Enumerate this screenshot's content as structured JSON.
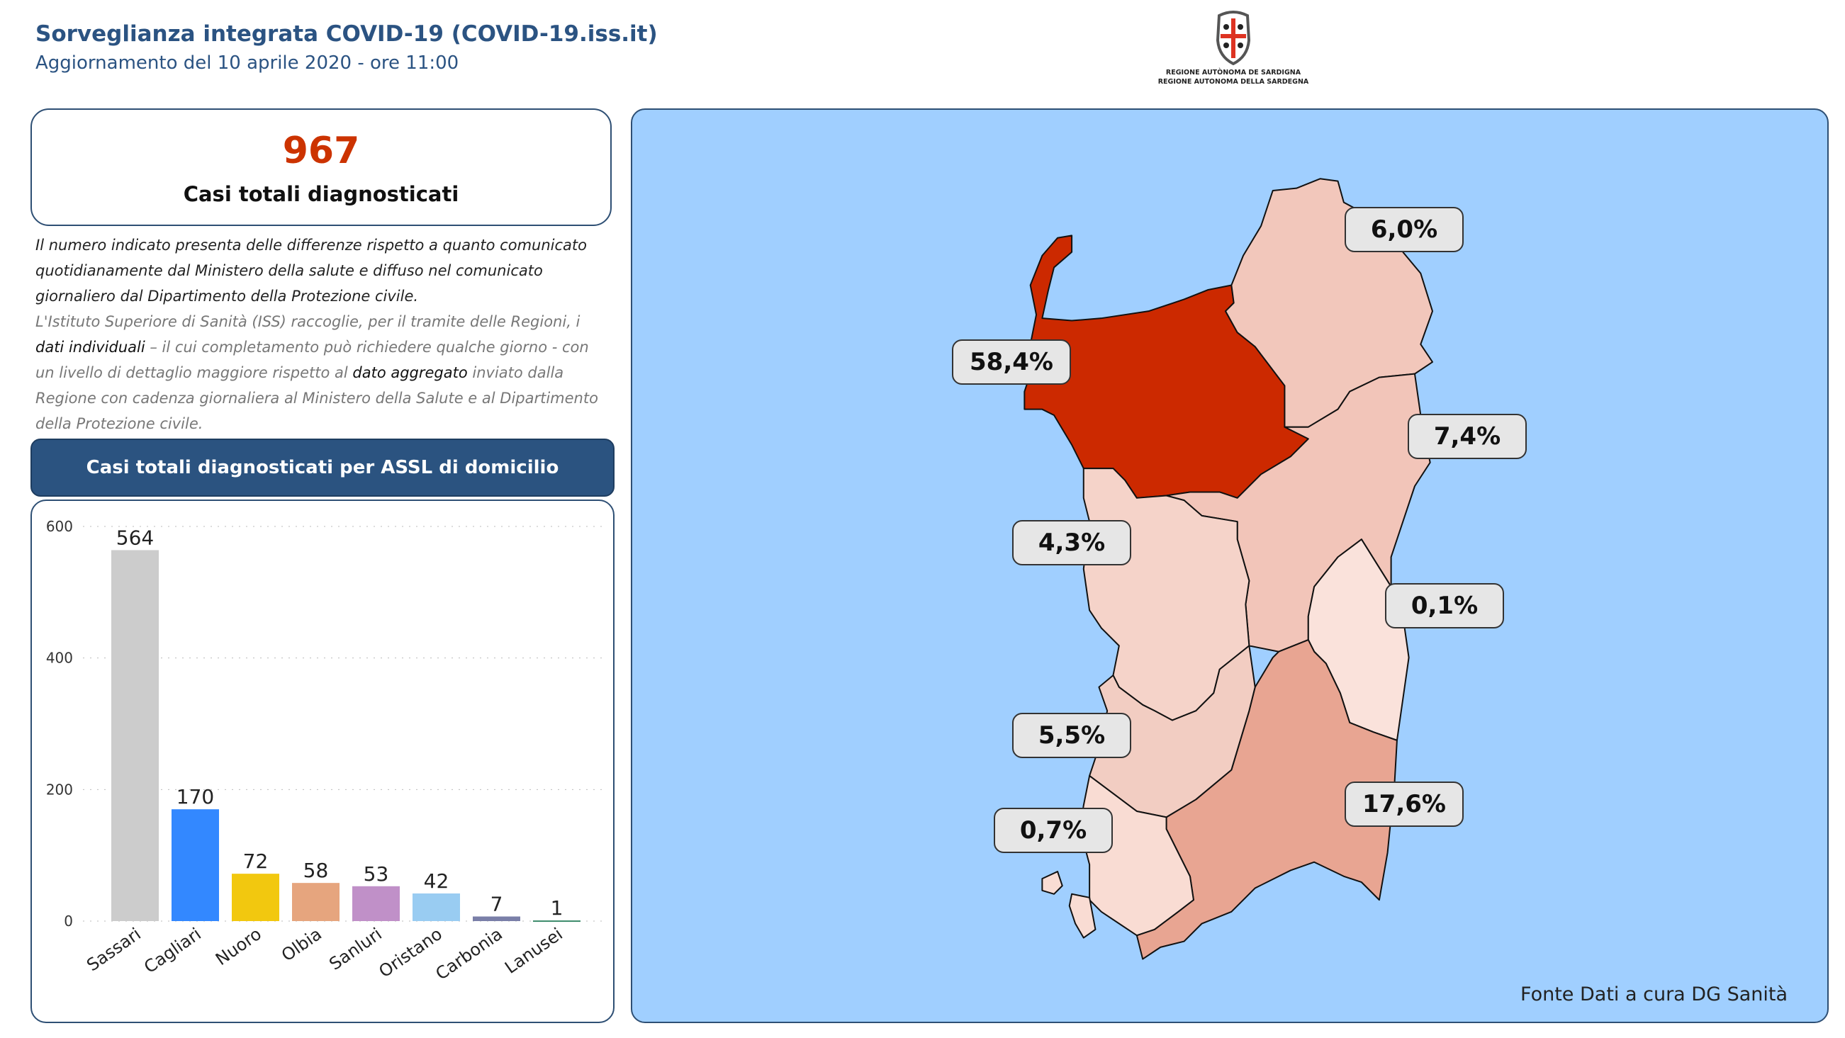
{
  "header": {
    "title": "Sorveglianza integrata COVID-19 (COVID-19.iss.it)",
    "subtitle": "Aggiornamento del 10 aprile 2020 - ore 11:00"
  },
  "logo": {
    "line1": "REGIONE AUTÒNOMA DE SARDIGNA",
    "line2": "REGIONE AUTONOMA DELLA SARDEGNA",
    "icon": "sardinia-coat-of-arms"
  },
  "kpi": {
    "value": "967",
    "label": "Casi totali diagnosticati",
    "value_color": "#cc3300"
  },
  "note": {
    "p1": "Il numero indicato presenta delle differenze rispetto a quanto comunicato quotidianamente dal Ministero della salute e diffuso nel comunicato giornaliero dal Dipartimento della Protezione civile.",
    "p2a": "L'Istituto Superiore di Sanità (ISS) raccoglie, per il tramite delle Regioni, i ",
    "p2b": "dati individuali",
    "p2c": " – il cui completamento può richiedere qualche giorno - con un livello di dettaglio maggiore rispetto al ",
    "p2d": "dato aggregato",
    "p2e": " inviato dalla Regione con cadenza giornaliera al Ministero della Salute e al Dipartimento della Protezione civile."
  },
  "chart_header": "Casi totali diagnosticati per ASSL di domicilio",
  "chart_data": {
    "type": "bar",
    "title": "Casi totali diagnosticati per ASSL di domicilio",
    "categories": [
      "Sassari",
      "Cagliari",
      "Nuoro",
      "Olbia",
      "Sanluri",
      "Oristano",
      "Carbonia",
      "Lanusei"
    ],
    "values": [
      564,
      170,
      72,
      58,
      53,
      42,
      7,
      1
    ],
    "colors": [
      "#cccccc",
      "#3388ff",
      "#f2c80f",
      "#e6a57e",
      "#c090c8",
      "#99ccf2",
      "#7a7fa8",
      "#3a8a6a"
    ],
    "yticks": [
      0,
      200,
      400,
      600
    ],
    "ylim": [
      0,
      600
    ],
    "grid": true,
    "xlabel": "",
    "ylabel": ""
  },
  "map": {
    "background": "#a0cfff",
    "regions": [
      {
        "name": "Sassari",
        "pct": "58,4%",
        "color": "#cc2900"
      },
      {
        "name": "Olbia",
        "pct": "6,0%",
        "color": "#f2c7bb"
      },
      {
        "name": "Nuoro",
        "pct": "7,4%",
        "color": "#f2c5b9"
      },
      {
        "name": "Oristano",
        "pct": "4,3%",
        "color": "#f5d3c9"
      },
      {
        "name": "Lanusei",
        "pct": "0,1%",
        "color": "#fae2db"
      },
      {
        "name": "Cagliari",
        "pct": "17,6%",
        "color": "#e8a592"
      },
      {
        "name": "Sanluri",
        "pct": "5,5%",
        "color": "#f2cdc2"
      },
      {
        "name": "Carbonia",
        "pct": "0,7%",
        "color": "#f9dcd3"
      }
    ],
    "source": "Fonte Dati a cura DG Sanità"
  }
}
